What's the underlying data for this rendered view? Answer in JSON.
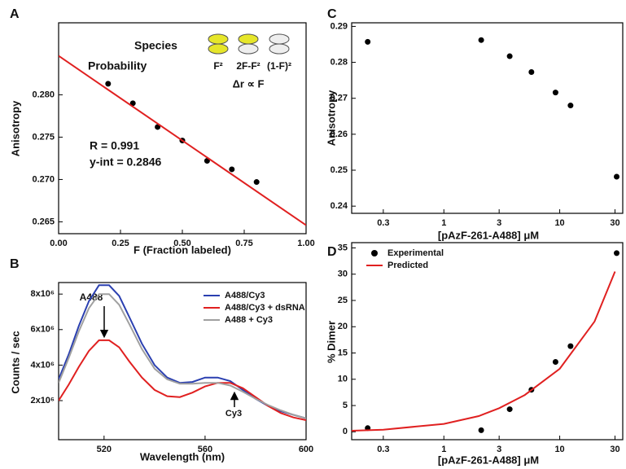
{
  "chart_data": [
    {
      "type": "scatter",
      "panel": "A",
      "xlabel": "F (Fraction labeled)",
      "ylabel": "Anisotropy",
      "xlim": [
        0,
        1
      ],
      "ylim": [
        0.2636,
        0.2885
      ],
      "xticks": [
        {
          "value": 0,
          "label": "0.00"
        },
        {
          "value": 0.25,
          "label": "0.25"
        },
        {
          "value": 0.5,
          "label": "0.50"
        },
        {
          "value": 0.75,
          "label": "0.75"
        },
        {
          "value": 1,
          "label": "1.00"
        }
      ],
      "yticks": [
        0.265,
        {
          "value": 0.27,
          "label": "0.270"
        },
        0.275,
        {
          "value": 0.28,
          "label": "0.280"
        }
      ],
      "annotations": [
        "Species",
        "Probability",
        "F²",
        "2F-F²",
        "(1-F)²",
        "Δr ∝ F",
        "R = 0.991",
        "y-int = 0.2846"
      ],
      "series": [
        {
          "mode": "markers",
          "color": "#000000",
          "x": [
            0.2,
            0.3,
            0.4,
            0.5,
            0.6,
            0.7,
            0.8
          ],
          "values": [
            0.2813,
            0.279,
            0.2762,
            0.2746,
            0.2722,
            0.2712,
            0.2697
          ]
        },
        {
          "mode": "line",
          "color": "#e02020",
          "x": [
            0,
            1
          ],
          "values": [
            0.2846,
            0.2646
          ]
        }
      ]
    },
    {
      "type": "line",
      "panel": "B",
      "xlabel": "Wavelength (nm)",
      "ylabel": "Counts / sec",
      "xlim": [
        502,
        600
      ],
      "ylim": [
        -200000,
        8650000
      ],
      "xticks": [
        520,
        560,
        600
      ],
      "yticks": [
        {
          "value": 2000000,
          "label": "2x10⁶"
        },
        {
          "value": 4000000,
          "label": "4x10⁶"
        },
        {
          "value": 6000000,
          "label": "6x10⁶"
        },
        {
          "value": 8000000,
          "label": "8x10⁶"
        }
      ],
      "annotations": [
        "A488",
        "Cy3"
      ],
      "x": [
        502,
        506,
        510,
        514,
        518,
        522,
        526,
        530,
        535,
        540,
        545,
        550,
        555,
        560,
        565,
        570,
        575,
        580,
        585,
        590,
        595,
        600
      ],
      "series": [
        {
          "name": "A488/Cy3",
          "color": "#2a3fb0",
          "values": [
            3200000,
            4600000,
            6200000,
            7600000,
            8500000,
            8500000,
            7900000,
            6700000,
            5200000,
            4000000,
            3300000,
            3000000,
            3050000,
            3300000,
            3300000,
            3100000,
            2600000,
            2100000,
            1700000,
            1400000,
            1200000,
            1000000
          ]
        },
        {
          "name": "A488/Cy3 + dsRNA",
          "color": "#e02020",
          "values": [
            2000000,
            2900000,
            3900000,
            4800000,
            5400000,
            5400000,
            5000000,
            4200000,
            3300000,
            2600000,
            2250000,
            2200000,
            2450000,
            2800000,
            3000000,
            3000000,
            2700000,
            2200000,
            1700000,
            1300000,
            1050000,
            900000
          ]
        },
        {
          "name": "A488 + Cy3",
          "color": "#a0a0a0",
          "values": [
            3000000,
            4400000,
            5900000,
            7200000,
            8000000,
            8000000,
            7400000,
            6300000,
            4900000,
            3800000,
            3200000,
            2950000,
            2950000,
            3000000,
            3000000,
            2850000,
            2500000,
            2100000,
            1750000,
            1450000,
            1200000,
            1000000
          ]
        }
      ]
    },
    {
      "type": "scatter",
      "panel": "C",
      "xlabel": "[pAzF-261-A488] μM",
      "ylabel": "Anisotropy",
      "xscale": "log",
      "xlim": [
        0.16,
        35
      ],
      "ylim": [
        0.238,
        0.291
      ],
      "xticks": [
        0.3,
        1,
        3,
        10,
        30
      ],
      "yticks": [
        0.24,
        0.25,
        0.26,
        0.27,
        0.28,
        0.29
      ],
      "series": [
        {
          "mode": "markers",
          "color": "#000000",
          "x": [
            0.22,
            2.1,
            3.7,
            5.7,
            9.2,
            12.4,
            31
          ],
          "values": [
            0.2857,
            0.2862,
            0.2817,
            0.2773,
            0.2716,
            0.268,
            0.2482
          ]
        }
      ]
    },
    {
      "type": "scatter",
      "panel": "D",
      "xlabel": "[pAzF-261-A488] μM",
      "ylabel": "% Dimer",
      "xscale": "log",
      "xlim": [
        0.16,
        35
      ],
      "ylim": [
        -1.5,
        36
      ],
      "xticks": [
        0.3,
        1,
        3,
        10,
        30
      ],
      "yticks": [
        0,
        5,
        10,
        15,
        20,
        25,
        30,
        35
      ],
      "series": [
        {
          "name": "Experimental",
          "mode": "markers",
          "color": "#000000",
          "x": [
            0.22,
            2.1,
            3.7,
            5.7,
            9.2,
            12.4,
            31
          ],
          "values": [
            0.7,
            0.3,
            4.3,
            8,
            13.3,
            16.3,
            34
          ]
        },
        {
          "name": "Predicted",
          "mode": "line",
          "color": "#e02020",
          "x": [
            0.16,
            0.3,
            1,
            2,
            3,
            5,
            10,
            20,
            30
          ],
          "values": [
            0.2,
            0.4,
            1.5,
            3,
            4.5,
            7,
            12,
            21,
            30.5
          ]
        }
      ]
    }
  ]
}
